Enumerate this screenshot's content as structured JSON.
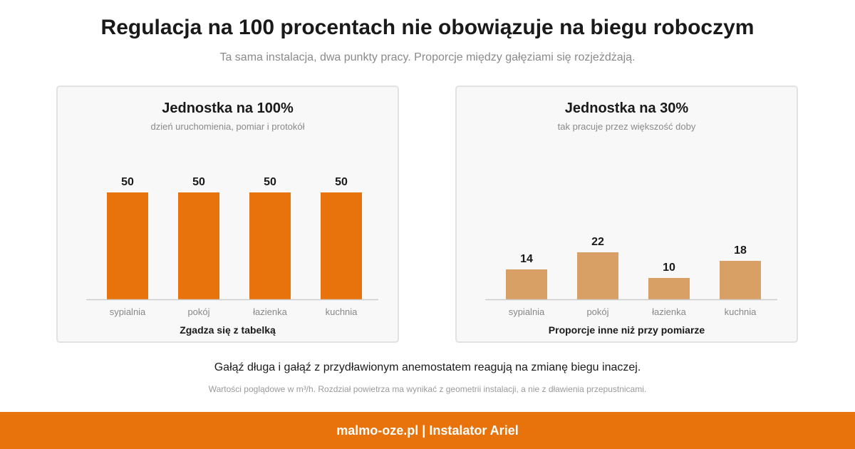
{
  "page": {
    "title": "Regulacja na 100 procentach nie obowiązuje na biegu roboczym",
    "subtitle": "Ta sama instalacja, dwa punkty pracy. Proporcje między gałęziami się rozjeżdżają.",
    "caption": "Gałąź długa i gałąź z przydławionym anemostatem reagują na zmianę biegu inaczej.",
    "footnote": "Wartości poglądowe w m³/h. Rozdział powietrza ma wynikać z geometrii instalacji, a nie z dławienia przepustnicami.",
    "footer": "malmo-oze.pl | Instalator Ariel"
  },
  "colors": {
    "accent": "#e8730c",
    "muted_bar": "#d9a066",
    "axis": "#cccccc"
  },
  "chart_data": [
    {
      "type": "bar",
      "title": "Jednostka na 100%",
      "subtitle": "dzień uruchomienia, pomiar i protokół",
      "note": "Zgadza się z tabelką",
      "categories": [
        "sypialnia",
        "pokój",
        "łazienka",
        "kuchnia"
      ],
      "values": [
        50,
        50,
        50,
        50
      ],
      "color": "#e8730c",
      "ylim": [
        0,
        50
      ]
    },
    {
      "type": "bar",
      "title": "Jednostka na 30%",
      "subtitle": "tak pracuje przez większość doby",
      "note": "Proporcje inne niż przy pomiarze",
      "categories": [
        "sypialnia",
        "pokój",
        "łazienka",
        "kuchnia"
      ],
      "values": [
        14,
        22,
        10,
        18
      ],
      "color": "#d9a066",
      "ylim": [
        0,
        50
      ]
    }
  ]
}
